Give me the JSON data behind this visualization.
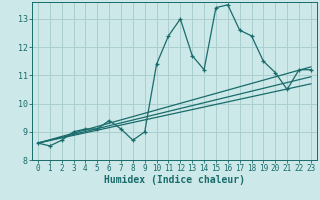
{
  "xlabel": "Humidex (Indice chaleur)",
  "background_color": "#cce8e8",
  "line_color": "#1a6b6b",
  "grid_color": "#aacfcf",
  "xlim": [
    -0.5,
    23.5
  ],
  "ylim": [
    8.0,
    13.6
  ],
  "yticks": [
    8,
    9,
    10,
    11,
    12,
    13
  ],
  "xticks": [
    0,
    1,
    2,
    3,
    4,
    5,
    6,
    7,
    8,
    9,
    10,
    11,
    12,
    13,
    14,
    15,
    16,
    17,
    18,
    19,
    20,
    21,
    22,
    23
  ],
  "series": [
    [
      0,
      8.6
    ],
    [
      1,
      8.5
    ],
    [
      2,
      8.7
    ],
    [
      3,
      9.0
    ],
    [
      4,
      9.1
    ],
    [
      5,
      9.1
    ],
    [
      6,
      9.4
    ],
    [
      7,
      9.1
    ],
    [
      8,
      8.7
    ],
    [
      9,
      9.0
    ],
    [
      10,
      11.4
    ],
    [
      11,
      12.4
    ],
    [
      12,
      13.0
    ],
    [
      13,
      11.7
    ],
    [
      14,
      11.2
    ],
    [
      15,
      13.4
    ],
    [
      16,
      13.5
    ],
    [
      17,
      12.6
    ],
    [
      18,
      12.4
    ],
    [
      19,
      11.5
    ],
    [
      20,
      11.1
    ],
    [
      21,
      10.5
    ],
    [
      22,
      11.2
    ],
    [
      23,
      11.2
    ]
  ],
  "trend_lines": [
    [
      [
        0,
        8.6
      ],
      [
        23,
        11.3
      ]
    ],
    [
      [
        0,
        8.6
      ],
      [
        23,
        10.7
      ]
    ],
    [
      [
        0,
        8.6
      ],
      [
        23,
        10.95
      ]
    ]
  ],
  "tick_fontsize": 5.5,
  "xlabel_fontsize": 7,
  "marker_size": 3,
  "linewidth": 0.9
}
